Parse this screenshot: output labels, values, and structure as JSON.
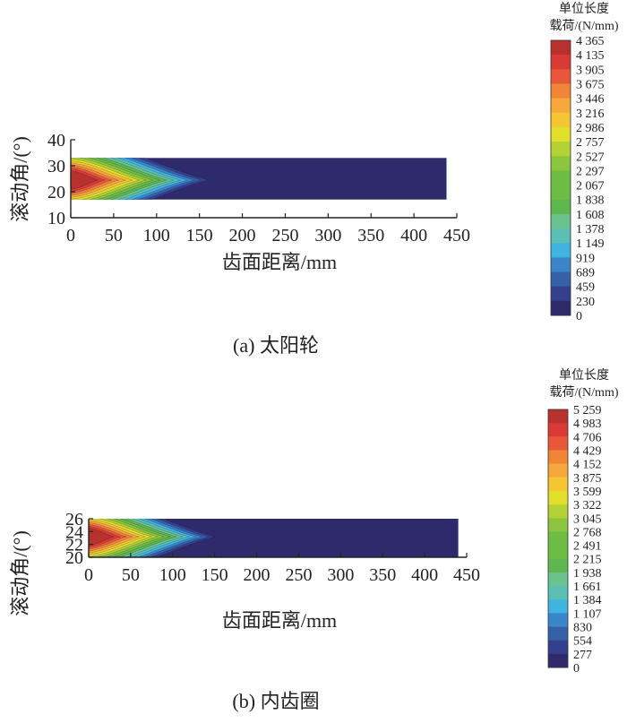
{
  "colors": {
    "background": "#2f2a6b",
    "scale": [
      "#2f2a6b",
      "#33418c",
      "#3660a8",
      "#3b86c9",
      "#3fb4df",
      "#5bbfb4",
      "#6cc28f",
      "#5fb84f",
      "#6dbd45",
      "#8cc63e",
      "#b4d234",
      "#e2df2a",
      "#f5c631",
      "#f6a93a",
      "#f08536",
      "#e9573a",
      "#d93a36",
      "#b7312f"
    ]
  },
  "charts": [
    {
      "caption": "(a) 太阳轮",
      "chart_data": {
        "type": "heatmap",
        "title": "",
        "xlabel": "齿面距离/mm",
        "ylabel": "滚动角/(°)",
        "xlim": [
          0,
          450
        ],
        "ylim": [
          10,
          40
        ],
        "x_ticks": [
          "0",
          "50",
          "100",
          "150",
          "200",
          "250",
          "300",
          "350",
          "400",
          "450"
        ],
        "y_ticks": [
          "10",
          "20",
          "30",
          "40"
        ],
        "data_extent": {
          "x": [
            0,
            438
          ],
          "y": [
            17,
            33
          ]
        },
        "hot_center_y": 24.5,
        "hot_extent_x": 160,
        "colorbar": {
          "title_line1": "单位长度",
          "title_line2": "载荷/(N/mm)",
          "ticks": [
            "4 365",
            "4 135",
            "3 905",
            "3 675",
            "3 446",
            "3 216",
            "2 986",
            "2 757",
            "2 527",
            "2 297",
            "2 067",
            "1 838",
            "1 608",
            "1 378",
            "1 149",
            "919",
            "689",
            "459",
            "230",
            "0"
          ],
          "min": 0,
          "max": 4365
        }
      }
    },
    {
      "caption": "(b) 内齿圈",
      "chart_data": {
        "type": "heatmap",
        "title": "",
        "xlabel": "齿面距离/mm",
        "ylabel": "滚动角/(°)",
        "xlim": [
          0,
          450
        ],
        "ylim": [
          20,
          26
        ],
        "x_ticks": [
          "0",
          "50",
          "100",
          "150",
          "200",
          "250",
          "300",
          "350",
          "400",
          "450"
        ],
        "y_ticks": [
          "20",
          "22",
          "24",
          "26"
        ],
        "data_extent": {
          "x": [
            0,
            440
          ],
          "y": [
            20,
            26
          ]
        },
        "hot_center_y": 23.2,
        "hot_extent_x": 150,
        "colorbar": {
          "title_line1": "单位长度",
          "title_line2": "载荷/(N/mm)",
          "ticks": [
            "5 259",
            "4 983",
            "4 706",
            "4 429",
            "4 152",
            "3 875",
            "3 599",
            "3 322",
            "3 045",
            "2 768",
            "2 491",
            "2 215",
            "1 938",
            "1 661",
            "1 384",
            "1 107",
            "830",
            "554",
            "277",
            "0"
          ],
          "min": 0,
          "max": 5259
        }
      }
    }
  ]
}
